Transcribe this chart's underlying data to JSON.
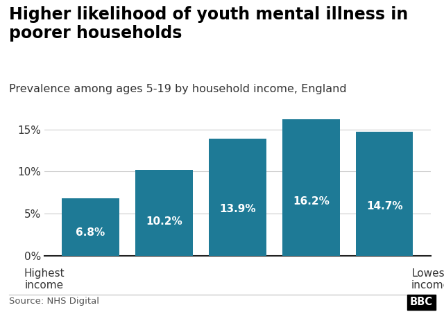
{
  "title": "Higher likelihood of youth mental illness in\npoorer households",
  "subtitle": "Prevalence among ages 5-19 by household income, England",
  "values": [
    6.8,
    10.2,
    13.9,
    16.2,
    14.7
  ],
  "labels": [
    "6.8%",
    "10.2%",
    "13.9%",
    "16.2%",
    "14.7%"
  ],
  "bar_color": "#1e7a96",
  "xlabel_left": "Highest\nincome",
  "xlabel_right": "Lowest\nincome",
  "yticks": [
    0,
    5,
    10,
    15
  ],
  "ytick_labels": [
    "0%",
    "5%",
    "10%",
    "15%"
  ],
  "ylim": [
    0,
    18.5
  ],
  "source": "Source: NHS Digital",
  "bbc_logo": "BBC",
  "background_color": "#ffffff",
  "title_fontsize": 17,
  "subtitle_fontsize": 11.5,
  "label_fontsize": 11,
  "source_fontsize": 9.5,
  "tick_fontsize": 11
}
